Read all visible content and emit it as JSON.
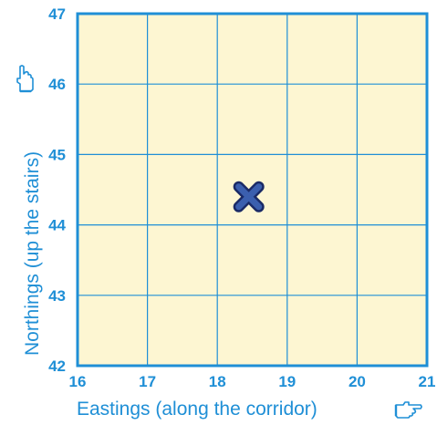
{
  "grid": {
    "x_ticks": [
      "16",
      "17",
      "18",
      "19",
      "20",
      "21"
    ],
    "y_ticks": [
      "42",
      "43",
      "44",
      "45",
      "46",
      "47"
    ],
    "x_range": [
      16,
      21
    ],
    "y_range": [
      42,
      47
    ],
    "xlabel": "Eastings (along the corridor)",
    "ylabel": "Northings (up the stairs)",
    "x_icon": "pointing-hand-right-icon",
    "y_icon": "pointing-hand-up-icon",
    "marker": {
      "x": 18.45,
      "y": 44.4,
      "symbol": "cross",
      "icon": "cross-icon"
    },
    "colors": {
      "grid_line": "#1f8fd6",
      "label": "#1f8fd6",
      "background": "#fdf6d2",
      "marker_fill": "#3b5fae",
      "marker_stroke": "#1a2a66"
    }
  }
}
